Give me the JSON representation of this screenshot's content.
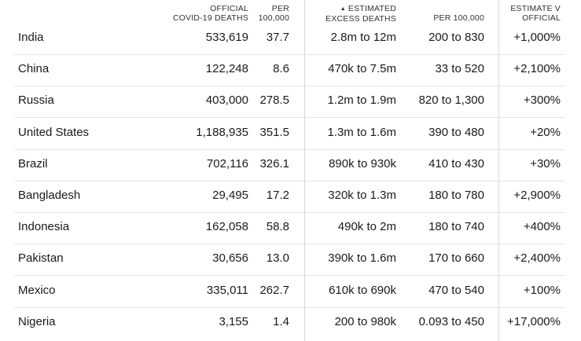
{
  "headers": {
    "official_deaths": [
      "Official",
      "Covid-19 deaths"
    ],
    "official_per_100k": [
      "Per",
      "100,000"
    ],
    "estimated_excess": [
      "Estimated",
      "Excess deaths"
    ],
    "estimated_per_100k": "Per 100,000",
    "estimate_v_official": [
      "Estimate v",
      "official"
    ]
  },
  "sort_indicator": "▲",
  "rows": [
    {
      "country": "India",
      "official": "533,619",
      "official_per": "37.7",
      "estimated": "2.8m to 12m",
      "estimated_per": "200 to 830",
      "ratio": "+1,000%"
    },
    {
      "country": "China",
      "official": "122,248",
      "official_per": "8.6",
      "estimated": "470k to 7.5m",
      "estimated_per": "33 to 520",
      "ratio": "+2,100%"
    },
    {
      "country": "Russia",
      "official": "403,000",
      "official_per": "278.5",
      "estimated": "1.2m to 1.9m",
      "estimated_per": "820 to 1,300",
      "ratio": "+300%"
    },
    {
      "country": "United States",
      "official": "1,188,935",
      "official_per": "351.5",
      "estimated": "1.3m to 1.6m",
      "estimated_per": "390 to 480",
      "ratio": "+20%"
    },
    {
      "country": "Brazil",
      "official": "702,116",
      "official_per": "326.1",
      "estimated": "890k to 930k",
      "estimated_per": "410 to 430",
      "ratio": "+30%"
    },
    {
      "country": "Bangladesh",
      "official": "29,495",
      "official_per": "17.2",
      "estimated": "320k to 1.3m",
      "estimated_per": "180 to 780",
      "ratio": "+2,900%"
    },
    {
      "country": "Indonesia",
      "official": "162,058",
      "official_per": "58.8",
      "estimated": "490k to 2m",
      "estimated_per": "180 to 740",
      "ratio": "+400%"
    },
    {
      "country": "Pakistan",
      "official": "30,656",
      "official_per": "13.0",
      "estimated": "390k to 1.6m",
      "estimated_per": "170 to 660",
      "ratio": "+2,400%"
    },
    {
      "country": "Mexico",
      "official": "335,011",
      "official_per": "262.7",
      "estimated": "610k to 690k",
      "estimated_per": "470 to 540",
      "ratio": "+100%"
    },
    {
      "country": "Nigeria",
      "official": "3,155",
      "official_per": "1.4",
      "estimated": "200 to 980k",
      "estimated_per": "0.093 to 450",
      "ratio": "+17,000%"
    }
  ]
}
